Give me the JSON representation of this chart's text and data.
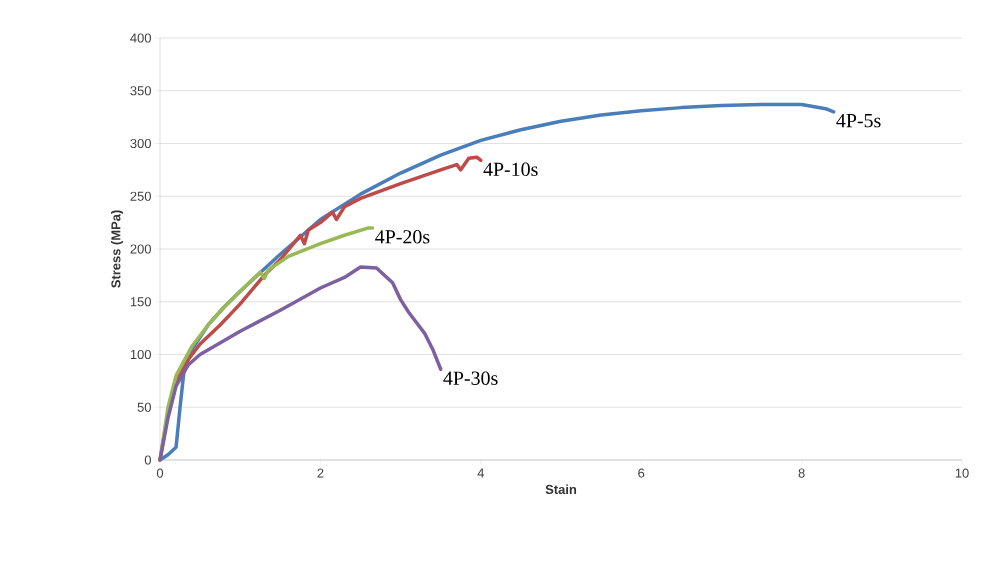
{
  "chart_data": {
    "type": "line",
    "xlabel": "Stain",
    "ylabel": "Stress (MPa)",
    "xlim": [
      0,
      10
    ],
    "ylim": [
      0,
      400
    ],
    "xticks": [
      0,
      2,
      4,
      6,
      8,
      10
    ],
    "yticks": [
      0,
      50,
      100,
      150,
      200,
      250,
      300,
      350,
      400
    ],
    "grid": "y",
    "legend": false,
    "marker": "none",
    "line_style": "solid",
    "series": [
      {
        "name": "4P-5s",
        "color": "#4a7ebb",
        "x": [
          0,
          0.1,
          0.2,
          0.25,
          0.3,
          0.4,
          0.6,
          0.8,
          1,
          1.5,
          2,
          2.5,
          3,
          3.5,
          4,
          4.5,
          5,
          5.5,
          6,
          6.5,
          7,
          7.5,
          8,
          8.3,
          8.4
        ],
        "values": [
          0,
          5,
          12,
          50,
          85,
          105,
          128,
          145,
          160,
          195,
          228,
          252,
          272,
          289,
          303,
          313,
          321,
          327,
          331,
          334,
          336,
          337,
          337,
          333,
          330
        ]
      },
      {
        "name": "4P-10s",
        "color": "#be4b48",
        "x": [
          0,
          0.1,
          0.2,
          0.35,
          0.5,
          0.75,
          1,
          1.3,
          1.5,
          1.75,
          1.8,
          1.85,
          2,
          2.15,
          2.2,
          2.3,
          2.5,
          3,
          3.5,
          3.7,
          3.75,
          3.85,
          3.95,
          4
        ],
        "values": [
          0,
          45,
          75,
          95,
          110,
          128,
          148,
          175,
          190,
          213,
          205,
          218,
          225,
          235,
          228,
          240,
          248,
          262,
          275,
          280,
          275,
          286,
          287,
          284
        ]
      },
      {
        "name": "4P-20s",
        "color": "#98b954",
        "x": [
          0,
          0.1,
          0.2,
          0.4,
          0.6,
          0.8,
          1,
          1.25,
          1.3,
          1.35,
          1.6,
          2,
          2.3,
          2.6,
          2.65
        ],
        "values": [
          0,
          50,
          80,
          108,
          128,
          145,
          160,
          178,
          172,
          180,
          193,
          205,
          213,
          220,
          220
        ]
      },
      {
        "name": "4P-30s",
        "color": "#7d60a0",
        "x": [
          0,
          0.1,
          0.2,
          0.35,
          0.5,
          1,
          1.5,
          2,
          2.3,
          2.5,
          2.7,
          2.9,
          3,
          3.1,
          3.3,
          3.4,
          3.5
        ],
        "values": [
          0,
          40,
          70,
          90,
          100,
          122,
          142,
          163,
          173,
          183,
          182,
          168,
          152,
          140,
          120,
          105,
          86
        ]
      }
    ]
  }
}
